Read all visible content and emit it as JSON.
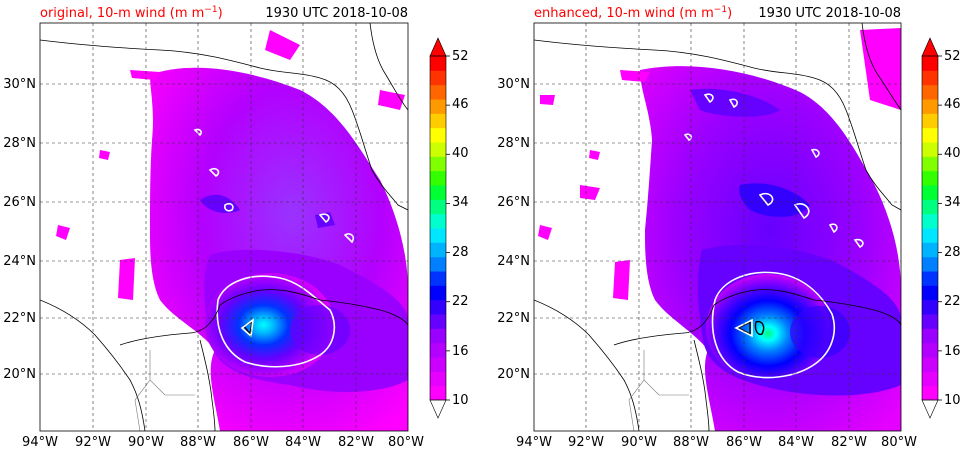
{
  "panels": [
    {
      "id": "original",
      "label": "original, 10-m wind (m m",
      "label_sup": "−1",
      "label_close": ")",
      "time": "1930 UTC 2018-10-08"
    },
    {
      "id": "enhanced",
      "label": "enhanced, 10-m wind (m m",
      "label_sup": "−1",
      "label_close": ")",
      "time": "1930 UTC 2018-10-08"
    }
  ],
  "lon_ticks": [
    "94°W",
    "92°W",
    "90°W",
    "88°W",
    "86°W",
    "84°W",
    "82°W",
    "80°W"
  ],
  "lat_ticks": [
    "20°N",
    "22°N",
    "24°N",
    "26°N",
    "28°N",
    "30°N"
  ],
  "colorbar": {
    "ticks": [
      "10",
      "16",
      "22",
      "28",
      "34",
      "40",
      "46",
      "52"
    ],
    "levels": [
      10,
      12,
      14,
      16,
      18,
      20,
      22,
      24,
      26,
      28,
      30,
      32,
      34,
      36,
      38,
      40,
      42,
      44,
      46,
      48,
      50,
      52
    ],
    "colors": [
      "#ff00ff",
      "#e600ff",
      "#cc00ff",
      "#b300ff",
      "#9900ff",
      "#6600ff",
      "#3300ff",
      "#0000ff",
      "#0033ff",
      "#0080ff",
      "#00b3ff",
      "#00e6ff",
      "#00ffcc",
      "#00ff80",
      "#00ff33",
      "#33ff00",
      "#80ff00",
      "#ccff00",
      "#ffff00",
      "#ffcc00",
      "#ff9900",
      "#ff6600",
      "#ff3300",
      "#ff0000"
    ],
    "over_color": "#ff0000",
    "under_color": "#ffffff"
  },
  "colors": {
    "label_red": "#ff0000",
    "wind_base": "#ff00ff",
    "wind_mid": "#9933ff",
    "wind_high": "#0000ff",
    "wind_core": "#00ffff"
  }
}
